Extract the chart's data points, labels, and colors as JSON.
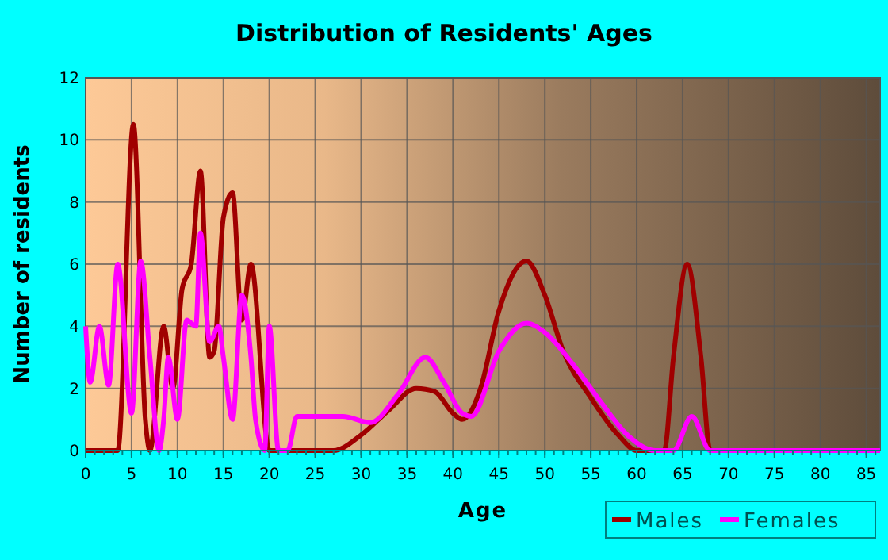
{
  "chart_data": {
    "type": "line",
    "title": "Distribution of Residents' Ages",
    "xlabel": "Age",
    "ylabel": "Number of residents",
    "xlim": [
      0,
      86.5
    ],
    "xticks": [
      0,
      5,
      10,
      15,
      20,
      25,
      30,
      35,
      40,
      45,
      50,
      55,
      60,
      65,
      70,
      75,
      80,
      85
    ],
    "ylim": [
      0,
      12
    ],
    "yticks": [
      0,
      2,
      4,
      6,
      8,
      10,
      12
    ],
    "grid": true,
    "legend": "bottom right",
    "marker": "none",
    "line_style": "solid",
    "series": [
      {
        "name": "Males",
        "color": "#a00000",
        "x": [
          0,
          3.5,
          5.2,
          6.5,
          7,
          8.5,
          9.5,
          10.5,
          11.5,
          12.5,
          13.5,
          14,
          15,
          16,
          17,
          18,
          20,
          21,
          25,
          27,
          30,
          33,
          36,
          38,
          40,
          41,
          43,
          45,
          48,
          50,
          52,
          55,
          58,
          60,
          63,
          64,
          65.5,
          67,
          68,
          86.5
        ],
        "values": [
          0,
          0,
          10.5,
          1,
          0,
          4,
          2,
          5.2,
          6,
          9,
          3,
          3.2,
          7.5,
          8.3,
          4.2,
          6,
          0,
          0,
          0,
          0,
          0.5,
          1.3,
          2,
          1.9,
          1.2,
          1,
          2,
          4.5,
          6.1,
          5,
          3.2,
          1.7,
          0.5,
          0,
          0,
          3,
          6,
          3,
          0,
          0
        ]
      },
      {
        "name": "Females",
        "color": "#ff00ff",
        "x": [
          0,
          0.5,
          1.5,
          2.5,
          3.5,
          5,
          6,
          7,
          8,
          8.5,
          9,
          10,
          11,
          12,
          12.5,
          13.5,
          14.5,
          15,
          16,
          17,
          18,
          18.5,
          19.5,
          20,
          21,
          22,
          23,
          25,
          28,
          31,
          34,
          37,
          39,
          41,
          42,
          45,
          48,
          50,
          53,
          56,
          59,
          62,
          64,
          66,
          68,
          86.5
        ],
        "values": [
          4,
          2.2,
          4,
          2.1,
          6,
          1.2,
          6.1,
          3,
          0,
          1,
          3,
          1,
          4.2,
          4,
          7,
          3.5,
          4,
          3,
          1,
          5,
          3,
          1,
          0,
          4,
          0,
          0,
          1.1,
          1.1,
          1.1,
          0.9,
          1.8,
          3,
          2.2,
          1.2,
          1.1,
          3.2,
          4.1,
          3.8,
          2.8,
          1.6,
          0.5,
          0,
          0,
          1.1,
          0,
          0
        ]
      }
    ]
  }
}
